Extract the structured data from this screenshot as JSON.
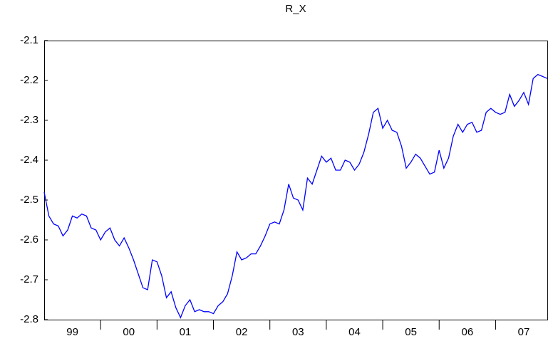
{
  "chart_data": {
    "type": "line",
    "title": "R_X",
    "categories": [
      null,
      null,
      null,
      null,
      null,
      null,
      "99",
      null,
      null,
      null,
      null,
      null,
      null,
      null,
      null,
      null,
      null,
      null,
      "00",
      null,
      null,
      null,
      null,
      null,
      null,
      null,
      null,
      null,
      null,
      null,
      "01",
      null,
      null,
      null,
      null,
      null,
      null,
      null,
      null,
      null,
      null,
      null,
      "02",
      null,
      null,
      null,
      null,
      null,
      null,
      null,
      null,
      null,
      null,
      null,
      "03",
      null,
      null,
      null,
      null,
      null,
      null,
      null,
      null,
      null,
      null,
      null,
      "04",
      null,
      null,
      null,
      null,
      null,
      null,
      null,
      null,
      null,
      null,
      null,
      "05",
      null,
      null,
      null,
      null,
      null,
      null,
      null,
      null,
      null,
      null,
      null,
      "06",
      null,
      null,
      null,
      null,
      null,
      null,
      null,
      null,
      null,
      null,
      null,
      "07",
      null,
      null,
      null,
      null,
      null
    ],
    "series": [
      {
        "name": "R_X",
        "color": "#0000ff",
        "values": [
          -2.48,
          -2.54,
          -2.56,
          -2.565,
          -2.59,
          -2.575,
          -2.54,
          -2.545,
          -2.535,
          -2.54,
          -2.57,
          -2.575,
          -2.6,
          -2.58,
          -2.57,
          -2.6,
          -2.615,
          -2.595,
          -2.62,
          -2.65,
          -2.685,
          -2.72,
          -2.725,
          -2.65,
          -2.655,
          -2.69,
          -2.745,
          -2.73,
          -2.77,
          -2.795,
          -2.765,
          -2.75,
          -2.78,
          -2.775,
          -2.78,
          -2.78,
          -2.785,
          -2.765,
          -2.755,
          -2.735,
          -2.69,
          -2.63,
          -2.65,
          -2.645,
          -2.635,
          -2.635,
          -2.615,
          -2.59,
          -2.56,
          -2.555,
          -2.56,
          -2.525,
          -2.46,
          -2.495,
          -2.5,
          -2.525,
          -2.445,
          -2.46,
          -2.425,
          -2.39,
          -2.405,
          -2.395,
          -2.425,
          -2.425,
          -2.4,
          -2.405,
          -2.425,
          -2.41,
          -2.38,
          -2.335,
          -2.28,
          -2.27,
          -2.32,
          -2.3,
          -2.325,
          -2.33,
          -2.365,
          -2.42,
          -2.405,
          -2.385,
          -2.395,
          -2.415,
          -2.435,
          -2.43,
          -2.375,
          -2.42,
          -2.395,
          -2.34,
          -2.31,
          -2.33,
          -2.31,
          -2.305,
          -2.33,
          -2.325,
          -2.28,
          -2.27,
          -2.28,
          -2.285,
          -2.28,
          -2.235,
          -2.265,
          -2.25,
          -2.23,
          -2.26,
          -2.195,
          -2.185,
          -2.19,
          -2.195
        ]
      }
    ],
    "ylim": [
      -2.8,
      -2.1
    ],
    "yticks": [
      -2.1,
      -2.2,
      -2.3,
      -2.4,
      -2.5,
      -2.6,
      -2.7,
      -2.8
    ]
  }
}
